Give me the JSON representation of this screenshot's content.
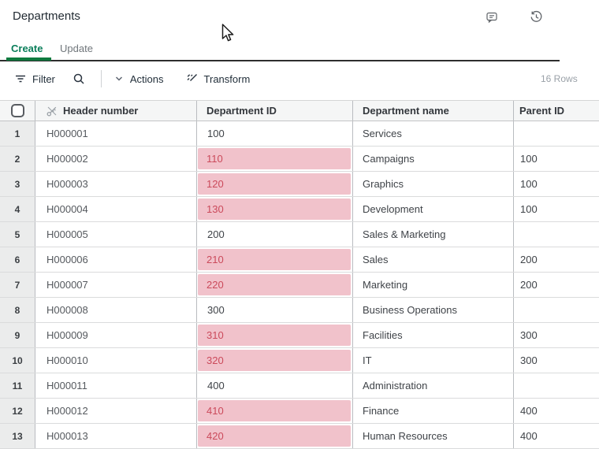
{
  "window": {
    "title": "Departments"
  },
  "tabs": {
    "create": "Create",
    "update": "Update",
    "active_tab": "Create"
  },
  "toolbar": {
    "filter": "Filter",
    "actions": "Actions",
    "transform": "Transform",
    "row_count": "16 Rows"
  },
  "table": {
    "columns": {
      "header_number": "Header number",
      "department_id": "Department ID",
      "department_name": "Department name",
      "parent_id": "Parent ID"
    },
    "rows": [
      {
        "n": "1",
        "header_number": "H000001",
        "department_id": "100",
        "highlight": false,
        "department_name": "Services",
        "parent_id": ""
      },
      {
        "n": "2",
        "header_number": "H000002",
        "department_id": "110",
        "highlight": true,
        "department_name": "Campaigns",
        "parent_id": "100"
      },
      {
        "n": "3",
        "header_number": "H000003",
        "department_id": "120",
        "highlight": true,
        "department_name": "Graphics",
        "parent_id": "100"
      },
      {
        "n": "4",
        "header_number": "H000004",
        "department_id": "130",
        "highlight": true,
        "department_name": "Development",
        "parent_id": "100"
      },
      {
        "n": "5",
        "header_number": "H000005",
        "department_id": "200",
        "highlight": false,
        "department_name": "Sales & Marketing",
        "parent_id": ""
      },
      {
        "n": "6",
        "header_number": "H000006",
        "department_id": "210",
        "highlight": true,
        "department_name": "Sales",
        "parent_id": "200"
      },
      {
        "n": "7",
        "header_number": "H000007",
        "department_id": "220",
        "highlight": true,
        "department_name": "Marketing",
        "parent_id": "200"
      },
      {
        "n": "8",
        "header_number": "H000008",
        "department_id": "300",
        "highlight": false,
        "department_name": "Business Operations",
        "parent_id": ""
      },
      {
        "n": "9",
        "header_number": "H000009",
        "department_id": "310",
        "highlight": true,
        "department_name": "Facilities",
        "parent_id": "300"
      },
      {
        "n": "10",
        "header_number": "H000010",
        "department_id": "320",
        "highlight": true,
        "department_name": "IT",
        "parent_id": "300"
      },
      {
        "n": "11",
        "header_number": "H000011",
        "department_id": "400",
        "highlight": false,
        "department_name": "Administration",
        "parent_id": ""
      },
      {
        "n": "12",
        "header_number": "H000012",
        "department_id": "410",
        "highlight": true,
        "department_name": "Finance",
        "parent_id": "400"
      },
      {
        "n": "13",
        "header_number": "H000013",
        "department_id": "420",
        "highlight": true,
        "department_name": "Human Resources",
        "parent_id": "400"
      }
    ]
  },
  "colors": {
    "accent_green": "#0a7e5a",
    "tab_underline": "#0d7a3e",
    "highlight_bg": "#f1c2cb",
    "highlight_text": "#cb4a5b",
    "header_bg": "#f5f6f6",
    "row_number_bg": "#ebecec"
  }
}
